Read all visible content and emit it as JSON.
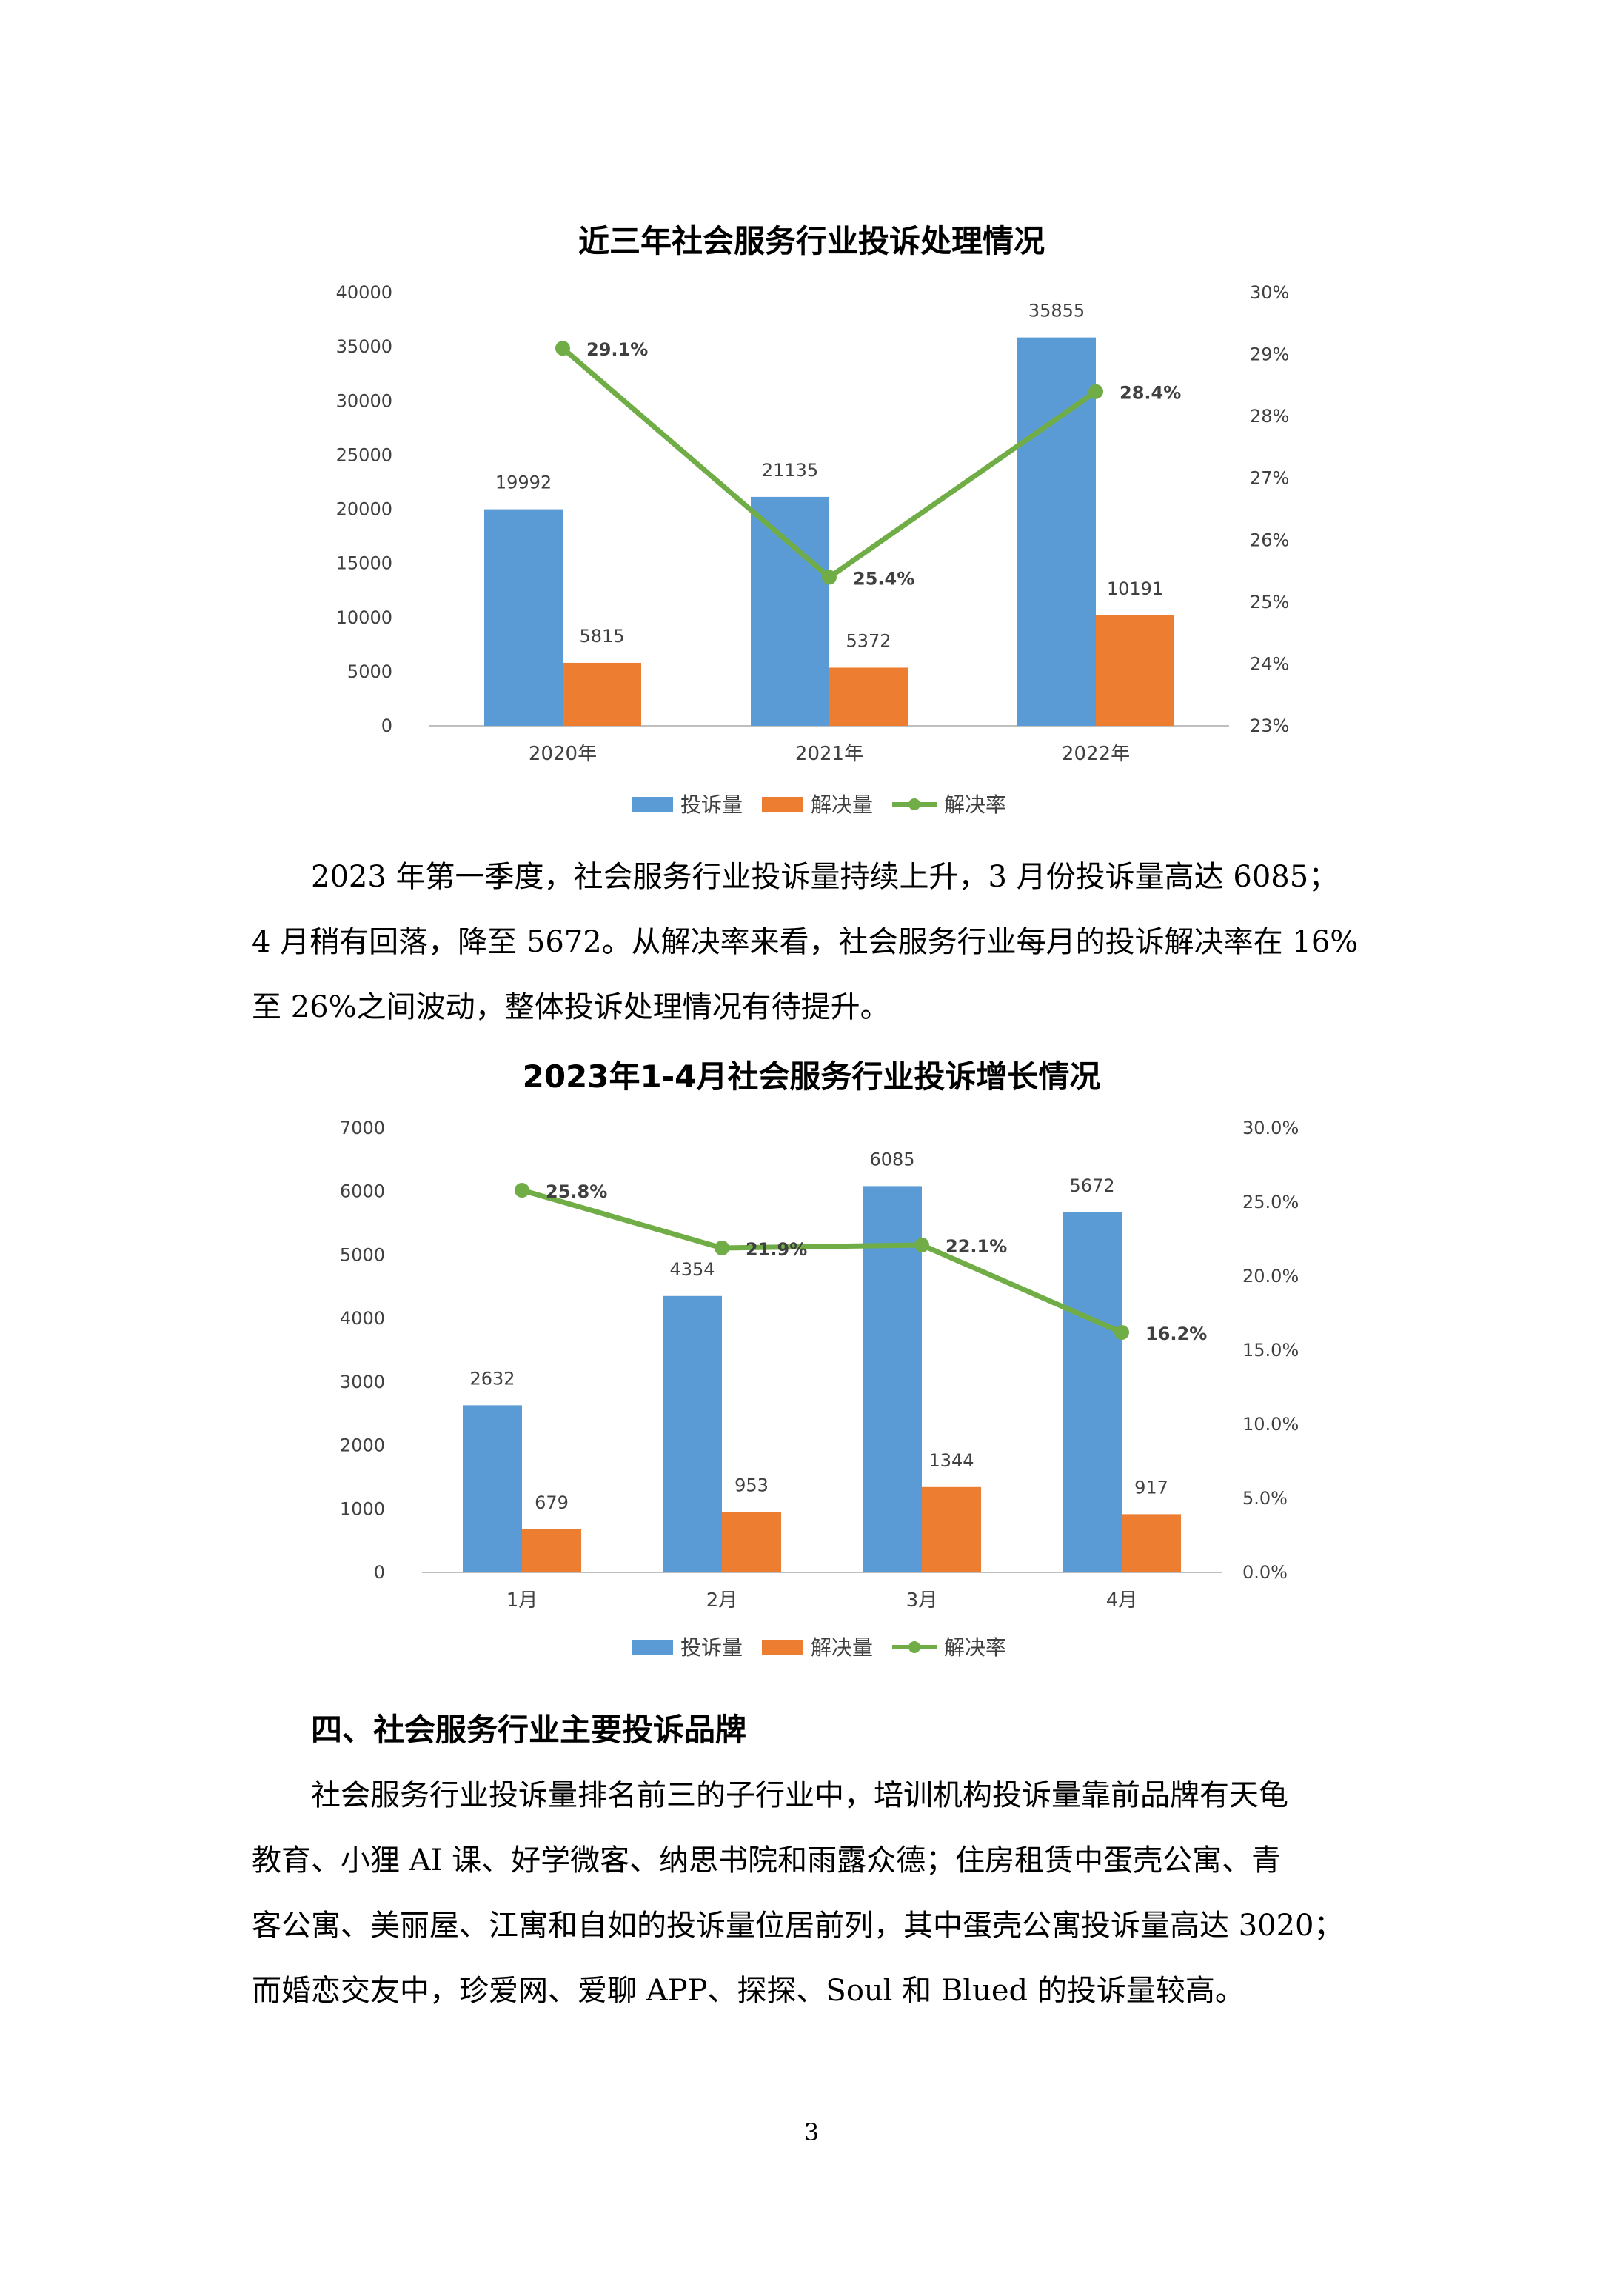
{
  "chart_data": [
    {
      "type": "bar",
      "title": "近三年社会服务行业投诉处理情况",
      "categories": [
        "2020年",
        "2021年",
        "2022年"
      ],
      "series": [
        {
          "name": "投诉量",
          "kind": "bar",
          "axis": "left",
          "color": "#5b9bd5",
          "values": [
            19992,
            21135,
            35855
          ]
        },
        {
          "name": "解决量",
          "kind": "bar",
          "axis": "left",
          "color": "#ed7d31",
          "values": [
            5815,
            5372,
            10191
          ]
        },
        {
          "name": "解决率",
          "kind": "line",
          "axis": "right",
          "color": "#70ad47",
          "values": [
            29.1,
            25.4,
            28.4
          ],
          "labels": [
            "29.1%",
            "25.4%",
            "28.4%"
          ]
        }
      ],
      "ylim": [
        0,
        40000
      ],
      "y_ticks": [
        "0",
        "5000",
        "10000",
        "15000",
        "20000",
        "25000",
        "30000",
        "35000",
        "40000"
      ],
      "y2lim": [
        23,
        30
      ],
      "y2_ticks": [
        "23%",
        "24%",
        "25%",
        "26%",
        "27%",
        "28%",
        "29%",
        "30%"
      ],
      "legend_position": "bottom",
      "grid": false
    },
    {
      "type": "bar",
      "title": "2023年1-4月社会服务行业投诉增长情况",
      "categories": [
        "1月",
        "2月",
        "3月",
        "4月"
      ],
      "series": [
        {
          "name": "投诉量",
          "kind": "bar",
          "axis": "left",
          "color": "#5b9bd5",
          "values": [
            2632,
            4354,
            6085,
            5672
          ]
        },
        {
          "name": "解决量",
          "kind": "bar",
          "axis": "left",
          "color": "#ed7d31",
          "values": [
            679,
            953,
            1344,
            917
          ]
        },
        {
          "name": "解决率",
          "kind": "line",
          "axis": "right",
          "color": "#70ad47",
          "values": [
            25.8,
            21.9,
            22.1,
            16.2
          ],
          "labels": [
            "25.8%",
            "21.9%",
            "22.1%",
            "16.2%"
          ]
        }
      ],
      "ylim": [
        0,
        7000
      ],
      "y_ticks": [
        "0",
        "1000",
        "2000",
        "3000",
        "4000",
        "5000",
        "6000",
        "7000"
      ],
      "y2lim": [
        0,
        30
      ],
      "y2_ticks": [
        "0.0%",
        "5.0%",
        "10.0%",
        "15.0%",
        "20.0%",
        "25.0%",
        "30.0%"
      ],
      "legend_position": "bottom",
      "grid": false
    }
  ],
  "text": {
    "paragraph1": [
      "2023 年第一季度，社会服务行业投诉量持续上升，3 月份投诉量高达 6085；",
      "4 月稍有回落，降至 5672。从解决率来看，社会服务行业每月的投诉解决率在 16%",
      "至 26%之间波动，整体投诉处理情况有待提升。"
    ],
    "heading4": "四、社会服务行业主要投诉品牌",
    "paragraph2": [
      "社会服务行业投诉量排名前三的子行业中，培训机构投诉量靠前品牌有天龟",
      "教育、小狸 AI 课、好学微客、纳思书院和雨露众德；住房租赁中蛋壳公寓、青",
      "客公寓、美丽屋、江寓和自如的投诉量位居前列，其中蛋壳公寓投诉量高达 3020；",
      "而婚恋交友中，珍爱网、爱聊 APP、探探、Soul 和 Blued 的投诉量较高。"
    ],
    "page_number": "3"
  }
}
